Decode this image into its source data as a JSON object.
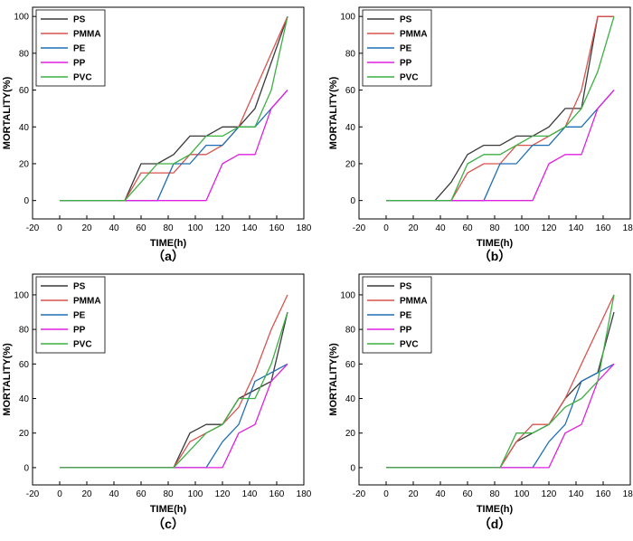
{
  "chart_data": [
    {
      "type": "line",
      "caption": "（a）",
      "xlabel": "TIME(h)",
      "ylabel": "MORTALITY(%)",
      "xlim": [
        -20,
        180
      ],
      "ylim": [
        -10,
        105
      ],
      "xticks": [
        -20,
        0,
        20,
        40,
        60,
        80,
        100,
        120,
        140,
        160,
        180
      ],
      "yticks": [
        0,
        20,
        40,
        60,
        80,
        100
      ],
      "legend_position": "top-left",
      "series": [
        {
          "name": "PS",
          "color": "#3a3a3a",
          "x": [
            0,
            48,
            60,
            72,
            84,
            96,
            108,
            120,
            132,
            144,
            156,
            168
          ],
          "y": [
            0,
            0,
            20,
            20,
            25,
            35,
            35,
            40,
            40,
            50,
            75,
            100
          ]
        },
        {
          "name": "PMMA",
          "color": "#d9534f",
          "x": [
            0,
            48,
            60,
            72,
            84,
            96,
            108,
            120,
            132,
            144,
            156,
            168
          ],
          "y": [
            0,
            0,
            15,
            15,
            15,
            25,
            25,
            30,
            40,
            60,
            80,
            100
          ]
        },
        {
          "name": "PE",
          "color": "#1f6fb5",
          "x": [
            0,
            72,
            84,
            96,
            108,
            120,
            132,
            144,
            156,
            168
          ],
          "y": [
            0,
            0,
            20,
            20,
            30,
            30,
            40,
            40,
            50,
            60
          ]
        },
        {
          "name": "PP",
          "color": "#e020e0",
          "x": [
            0,
            108,
            120,
            132,
            144,
            156,
            168
          ],
          "y": [
            0,
            0,
            20,
            25,
            25,
            50,
            60
          ]
        },
        {
          "name": "PVC",
          "color": "#3cb043",
          "x": [
            0,
            48,
            60,
            72,
            84,
            96,
            108,
            120,
            132,
            144,
            156,
            168
          ],
          "y": [
            0,
            0,
            10,
            20,
            20,
            25,
            35,
            35,
            40,
            40,
            60,
            100
          ]
        }
      ]
    },
    {
      "type": "line",
      "caption": "（b）",
      "xlabel": "TIME(h)",
      "ylabel": "MORTALITY(%)",
      "xlim": [
        -20,
        180
      ],
      "ylim": [
        -10,
        105
      ],
      "xticks": [
        -20,
        0,
        20,
        40,
        60,
        80,
        100,
        120,
        140,
        160,
        180
      ],
      "yticks": [
        0,
        20,
        40,
        60,
        80,
        100
      ],
      "legend_position": "top-left",
      "series": [
        {
          "name": "PS",
          "color": "#3a3a3a",
          "x": [
            0,
            36,
            48,
            60,
            72,
            84,
            96,
            108,
            120,
            132,
            144,
            156,
            168
          ],
          "y": [
            0,
            0,
            10,
            25,
            30,
            30,
            35,
            35,
            40,
            50,
            50,
            100,
            100
          ]
        },
        {
          "name": "PMMA",
          "color": "#d9534f",
          "x": [
            0,
            48,
            60,
            72,
            84,
            96,
            108,
            120,
            132,
            144,
            156,
            168
          ],
          "y": [
            0,
            0,
            15,
            20,
            20,
            30,
            30,
            35,
            40,
            60,
            100,
            100
          ]
        },
        {
          "name": "PE",
          "color": "#1f6fb5",
          "x": [
            0,
            72,
            84,
            96,
            108,
            120,
            132,
            144,
            156,
            168
          ],
          "y": [
            0,
            0,
            20,
            20,
            30,
            30,
            40,
            40,
            50,
            60
          ]
        },
        {
          "name": "PP",
          "color": "#e020e0",
          "x": [
            0,
            108,
            120,
            132,
            144,
            156,
            168
          ],
          "y": [
            0,
            0,
            20,
            25,
            25,
            50,
            60
          ]
        },
        {
          "name": "PVC",
          "color": "#3cb043",
          "x": [
            0,
            48,
            60,
            72,
            84,
            96,
            108,
            120,
            132,
            144,
            156,
            168
          ],
          "y": [
            0,
            0,
            20,
            25,
            25,
            30,
            35,
            35,
            40,
            50,
            70,
            100
          ]
        }
      ]
    },
    {
      "type": "line",
      "caption": "（c）",
      "xlabel": "TIME(h)",
      "ylabel": "MORTALITY(%)",
      "xlim": [
        -20,
        180
      ],
      "ylim": [
        -10,
        112
      ],
      "xticks": [
        -20,
        0,
        20,
        40,
        60,
        80,
        100,
        120,
        140,
        160,
        180
      ],
      "yticks": [
        0,
        20,
        40,
        60,
        80,
        100
      ],
      "legend_position": "top-left",
      "series": [
        {
          "name": "PS",
          "color": "#3a3a3a",
          "x": [
            0,
            84,
            96,
            108,
            120,
            132,
            144,
            156,
            168
          ],
          "y": [
            0,
            0,
            20,
            25,
            25,
            40,
            45,
            50,
            90
          ]
        },
        {
          "name": "PMMA",
          "color": "#d9534f",
          "x": [
            0,
            84,
            96,
            108,
            120,
            132,
            144,
            156,
            168
          ],
          "y": [
            0,
            0,
            15,
            20,
            25,
            35,
            55,
            80,
            100
          ]
        },
        {
          "name": "PE",
          "color": "#1f6fb5",
          "x": [
            0,
            108,
            120,
            132,
            144,
            156,
            168
          ],
          "y": [
            0,
            0,
            15,
            25,
            50,
            55,
            60
          ]
        },
        {
          "name": "PP",
          "color": "#e020e0",
          "x": [
            0,
            120,
            132,
            144,
            156,
            168
          ],
          "y": [
            0,
            0,
            20,
            25,
            50,
            60
          ]
        },
        {
          "name": "PVC",
          "color": "#3cb043",
          "x": [
            0,
            84,
            96,
            108,
            120,
            132,
            144,
            156,
            168
          ],
          "y": [
            0,
            0,
            10,
            20,
            25,
            40,
            40,
            60,
            90
          ]
        }
      ]
    },
    {
      "type": "line",
      "caption": "（d）",
      "xlabel": "TIME(h)",
      "ylabel": "MORTALITY(%)",
      "xlim": [
        -20,
        180
      ],
      "ylim": [
        -10,
        112
      ],
      "xticks": [
        -20,
        0,
        20,
        40,
        60,
        80,
        100,
        120,
        140,
        160,
        180
      ],
      "yticks": [
        0,
        20,
        40,
        60,
        80,
        100
      ],
      "legend_position": "top-left",
      "series": [
        {
          "name": "PS",
          "color": "#3a3a3a",
          "x": [
            0,
            84,
            96,
            108,
            120,
            132,
            144,
            156,
            168
          ],
          "y": [
            0,
            0,
            15,
            20,
            25,
            40,
            50,
            55,
            90
          ]
        },
        {
          "name": "PMMA",
          "color": "#d9534f",
          "x": [
            0,
            84,
            96,
            108,
            120,
            132,
            144,
            156,
            168
          ],
          "y": [
            0,
            0,
            15,
            25,
            25,
            40,
            60,
            80,
            100
          ]
        },
        {
          "name": "PE",
          "color": "#1f6fb5",
          "x": [
            0,
            108,
            120,
            132,
            144,
            156,
            168
          ],
          "y": [
            0,
            0,
            15,
            25,
            50,
            55,
            60
          ]
        },
        {
          "name": "PP",
          "color": "#e020e0",
          "x": [
            0,
            120,
            132,
            144,
            156,
            168
          ],
          "y": [
            0,
            0,
            20,
            25,
            50,
            60
          ]
        },
        {
          "name": "PVC",
          "color": "#3cb043",
          "x": [
            0,
            84,
            96,
            108,
            120,
            132,
            144,
            156,
            168
          ],
          "y": [
            0,
            0,
            20,
            20,
            25,
            35,
            40,
            50,
            100
          ]
        }
      ]
    }
  ]
}
